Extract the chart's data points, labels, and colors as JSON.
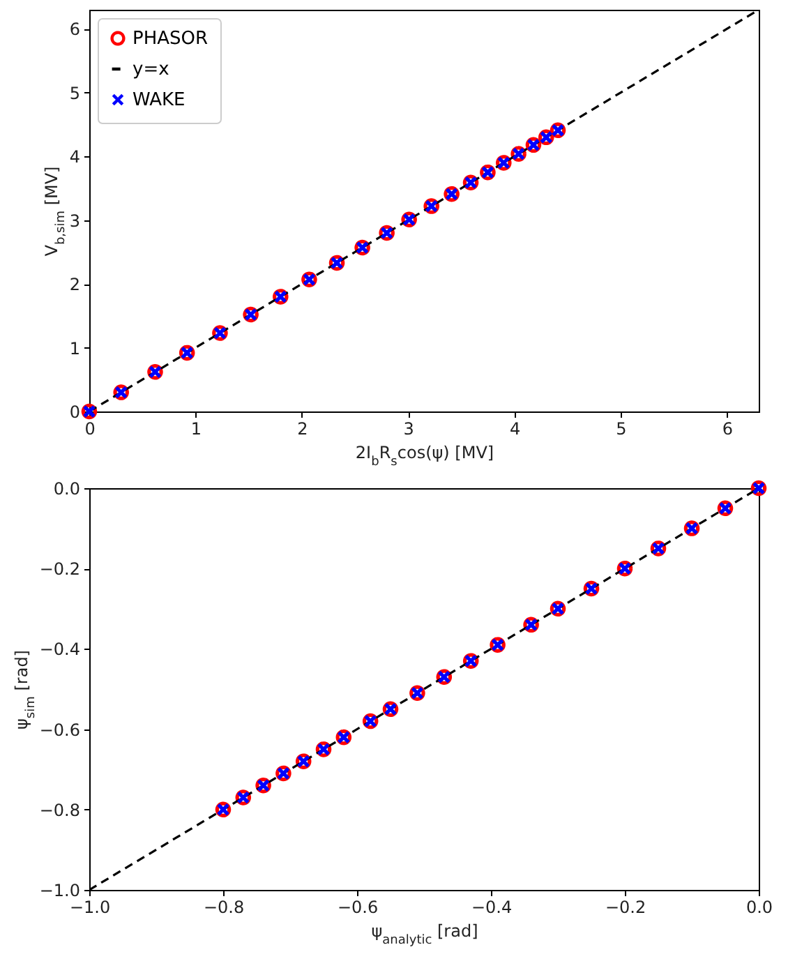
{
  "chart_data": [
    {
      "type": "scatter",
      "xlabel": "2I$_{b}$R$_{s}$cos(ψ) [MV]",
      "ylabel": "V$_{b,sim}$ [MV]",
      "xlim": [
        0,
        6.3
      ],
      "ylim": [
        0,
        6.3
      ],
      "xticks": [
        0,
        1,
        2,
        3,
        4,
        5,
        6
      ],
      "yticks": [
        0,
        1,
        2,
        3,
        4,
        5,
        6
      ],
      "legend": "top left",
      "series": [
        {
          "name": "PHASOR",
          "type": "scatter",
          "marker": "circle",
          "color": "#ff0000",
          "x": [
            0,
            0.3,
            0.62,
            0.92,
            1.23,
            1.52,
            1.8,
            2.07,
            2.33,
            2.57,
            2.8,
            3.01,
            3.22,
            3.41,
            3.59,
            3.75,
            3.9,
            4.04,
            4.18,
            4.3,
            4.41
          ],
          "values": [
            0,
            0.3,
            0.62,
            0.92,
            1.23,
            1.52,
            1.8,
            2.07,
            2.33,
            2.57,
            2.8,
            3.01,
            3.22,
            3.41,
            3.59,
            3.75,
            3.9,
            4.04,
            4.18,
            4.3,
            4.41
          ]
        },
        {
          "name": "y=x",
          "type": "line",
          "marker": "none",
          "line_style": "dashed",
          "color": "#000000",
          "x": [
            0,
            6.3
          ],
          "values": [
            0,
            6.3
          ]
        },
        {
          "name": "WAKE",
          "type": "scatter",
          "marker": "cross",
          "color": "#0000ff",
          "x": [
            0,
            0.3,
            0.62,
            0.92,
            1.23,
            1.52,
            1.8,
            2.07,
            2.33,
            2.57,
            2.8,
            3.01,
            3.22,
            3.41,
            3.59,
            3.75,
            3.9,
            4.04,
            4.18,
            4.3,
            4.41
          ],
          "values": [
            0,
            0.3,
            0.62,
            0.92,
            1.23,
            1.52,
            1.8,
            2.07,
            2.33,
            2.57,
            2.8,
            3.01,
            3.22,
            3.41,
            3.59,
            3.75,
            3.9,
            4.04,
            4.18,
            4.3,
            4.41
          ]
        }
      ]
    },
    {
      "type": "scatter",
      "xlabel": "ψ$_{analytic}$ [rad]",
      "ylabel": "ψ$_{sim}$ [rad]",
      "xlim": [
        -1,
        0
      ],
      "ylim": [
        -1,
        0
      ],
      "xticks": [
        {
          "value": -1,
          "label": "−1.0"
        },
        {
          "value": -0.8,
          "label": "−0.8"
        },
        {
          "value": -0.6,
          "label": "−0.6"
        },
        {
          "value": -0.4,
          "label": "−0.4"
        },
        {
          "value": -0.2,
          "label": "−0.2"
        },
        {
          "value": 0,
          "label": "0.0"
        }
      ],
      "yticks": [
        {
          "value": -1,
          "label": "−1.0"
        },
        {
          "value": -0.8,
          "label": "−0.8"
        },
        {
          "value": -0.6,
          "label": "−0.6"
        },
        {
          "value": -0.4,
          "label": "−0.4"
        },
        {
          "value": -0.2,
          "label": "−0.2"
        },
        {
          "value": 0,
          "label": "0.0"
        }
      ],
      "series": [
        {
          "type": "scatter",
          "marker": "circle",
          "color": "#ff0000",
          "x": [
            0,
            -0.05,
            -0.1,
            -0.15,
            -0.2,
            -0.25,
            -0.3,
            -0.34,
            -0.39,
            -0.43,
            -0.47,
            -0.51,
            -0.55,
            -0.58,
            -0.62,
            -0.65,
            -0.68,
            -0.71,
            -0.74,
            -0.77,
            -0.8
          ],
          "values": [
            0,
            -0.05,
            -0.1,
            -0.15,
            -0.2,
            -0.25,
            -0.3,
            -0.34,
            -0.39,
            -0.43,
            -0.47,
            -0.51,
            -0.55,
            -0.58,
            -0.62,
            -0.65,
            -0.68,
            -0.71,
            -0.74,
            -0.77,
            -0.8
          ]
        },
        {
          "type": "line",
          "marker": "none",
          "line_style": "dashed",
          "color": "#000000",
          "x": [
            -1,
            0
          ],
          "values": [
            -1,
            0
          ]
        },
        {
          "type": "scatter",
          "marker": "cross",
          "color": "#0000ff",
          "x": [
            0,
            -0.05,
            -0.1,
            -0.15,
            -0.2,
            -0.25,
            -0.3,
            -0.34,
            -0.39,
            -0.43,
            -0.47,
            -0.51,
            -0.55,
            -0.58,
            -0.62,
            -0.65,
            -0.68,
            -0.71,
            -0.74,
            -0.77,
            -0.8
          ],
          "values": [
            0,
            -0.05,
            -0.1,
            -0.15,
            -0.2,
            -0.25,
            -0.3,
            -0.34,
            -0.39,
            -0.43,
            -0.47,
            -0.51,
            -0.55,
            -0.58,
            -0.62,
            -0.65,
            -0.68,
            -0.71,
            -0.74,
            -0.77,
            -0.8
          ]
        }
      ]
    }
  ]
}
